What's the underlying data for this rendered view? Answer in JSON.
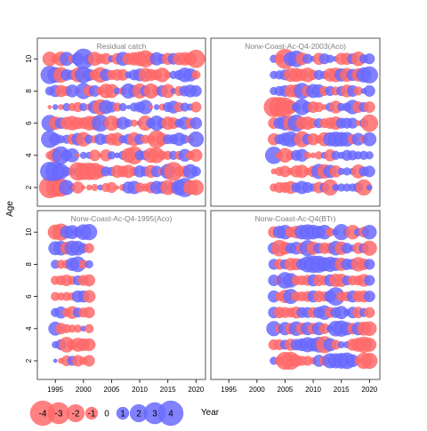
{
  "chart_data": {
    "type": "scatter",
    "kind": "bubble-residual-grid",
    "xlabel": "Year",
    "ylabel": "Age",
    "xlim": [
      1992,
      2021
    ],
    "ylim": [
      1.0,
      11.3
    ],
    "x_ticks": [
      1995,
      2000,
      2005,
      2010,
      2015,
      2020
    ],
    "y_ticks": [
      2,
      4,
      6,
      8,
      10
    ],
    "ages": [
      2,
      3,
      4,
      5,
      6,
      7,
      8,
      9,
      10
    ],
    "colors": {
      "positive": "#6b6bff",
      "negative": "#ff6b6b"
    },
    "legend": {
      "placement": "bottom-left",
      "values": [
        -4,
        -3,
        -2,
        -1,
        0,
        1,
        2,
        3,
        4
      ],
      "labels": [
        "-4",
        "-3",
        "-2",
        "-1",
        "0",
        "1",
        "2",
        "3",
        "4"
      ]
    },
    "panels": [
      {
        "title": "Residual catch",
        "years": [
          1994,
          2020
        ]
      },
      {
        "title": "Norw-Coast-Ac-Q4-2003(Aco)",
        "years": [
          2003,
          2020
        ]
      },
      {
        "title": "Norw-Coast-Ac-Q4-1995(Aco)",
        "years": [
          1995,
          2001
        ]
      },
      {
        "title": "Norw-Coast-Ac-Q4(BTr)",
        "years": [
          2003,
          2020
        ]
      }
    ],
    "residuals": [
      [
        [
          -2.9,
          -2.2,
          -2.1,
          1.4,
          0.3,
          -0.9,
          -0.1,
          -0.2,
          -0.3,
          0.2,
          -0.5,
          -0.7,
          -0.1,
          -0.3,
          0.9,
          1.1,
          -0.6,
          -0.4,
          -0.8,
          1.1,
          0.9,
          -1.4,
          -0.8,
          1.5,
          2.3,
          -1.3,
          -1.5
        ],
        [
          2.3,
          2.3,
          1.5,
          0.5,
          0.3,
          -2.1,
          -1.8,
          -1.9,
          -1.8,
          -1.0,
          0.6,
          0.5,
          -1.0,
          -0.8,
          -1.1,
          -0.5,
          0.9,
          0.6,
          -1.0,
          0.8,
          -0.4,
          1.4,
          -2.2,
          -0.6,
          -0.8,
          1.3,
          0.6
        ],
        [
          -0.4,
          -1.2,
          2.0,
          0.7,
          1.2,
          -0.1,
          0.3,
          0.3,
          -0.8,
          -0.1,
          -0.9,
          0.4,
          0.2,
          0.5,
          -1.3,
          -2.0,
          0.6,
          0.6,
          -1.4,
          -1.5,
          -0.5,
          -0.5,
          0.5,
          -0.5,
          1.0,
          -0.5,
          -1.0
        ],
        [
          1.9,
          0.9,
          0.4,
          0.5,
          -0.7,
          1.0,
          -1.3,
          0.5,
          -0.4,
          0.8,
          0.5,
          -0.9,
          -1.1,
          0.4,
          0.7,
          -1.2,
          0.7,
          -0.5,
          -0.5,
          -2.0,
          -0.9,
          0.6,
          0.6,
          1.1,
          0.5,
          -0.4,
          1.5
        ],
        [
          1.7,
          -1.1,
          0.8,
          -1.0,
          -1.3,
          -0.9,
          -0.8,
          -1.3,
          -1.2,
          1.8,
          0.3,
          -1.4,
          -0.6,
          1.0,
          0.4,
          -0.3,
          0.2,
          -1.4,
          0.6,
          1.4,
          0.6,
          -1.1,
          -0.8,
          0.5,
          1.0,
          -0.7,
          0.9
        ],
        [
          -0.1,
          0.2,
          -0.2,
          0.4,
          -0.4,
          -0.6,
          0.4,
          -0.3,
          1.1,
          -1.5,
          1.2,
          0.7,
          -0.5,
          0.4,
          0.1,
          0.5,
          0.7,
          1.3,
          -0.1,
          0.2,
          -0.3,
          0.6,
          1.0,
          -0.6,
          0.5,
          0.3,
          -0.7
        ],
        [
          0.5,
          0.9,
          -0.9,
          -0.6,
          1.0,
          -0.2,
          1.6,
          -0.8,
          0.8,
          -0.4,
          -1.3,
          -1.2,
          0.3,
          -0.4,
          1.4,
          0.8,
          -1.4,
          0.7,
          -1.4,
          -0.5,
          0.8,
          -1.2,
          0.2,
          -0.6,
          0.7,
          1.0,
          0.8
        ],
        [
          2.1,
          1.5,
          -1.5,
          0.8,
          0.6,
          -1.3,
          1.7,
          0.9,
          -0.7,
          -1.5,
          0.9,
          -0.6,
          -0.8,
          -0.8,
          0.3,
          0.7,
          1.0,
          -1.2,
          -0.9,
          -0.7,
          -1.3,
          -0.3,
          0.4,
          0.6,
          1.3,
          1.1,
          -0.5
        ],
        [
          -1.3,
          -0.4,
          -1.3,
          1.2,
          -0.4,
          1.0,
          2.6,
          0.6,
          -1.2,
          -0.6,
          -0.8,
          0.3,
          -0.8,
          1.2,
          -0.9,
          -1.1,
          -1.3,
          -1.8,
          -0.8,
          1.1,
          0.6,
          -0.9,
          0.8,
          -1.0,
          -1.1,
          -1.0,
          -2.1
        ]
      ],
      [
        [
          -0.4,
          -0.7,
          -0.7,
          -1.0,
          0.6,
          1.1,
          0.7,
          0.4,
          -0.8,
          0.6,
          -1.6,
          0.3,
          0.4,
          0.4,
          0.4,
          0.6,
          -1.6,
          0.2
        ],
        [
          -0.2,
          -0.5,
          -0.8,
          -0.3,
          -0.9,
          -1.1,
          -0.3,
          -0.8,
          1.4,
          -1.3,
          1.1,
          -0.9,
          0.3,
          0.4,
          0.3,
          -1.2,
          0.6,
          0.8
        ],
        [
          1.9,
          -0.3,
          -1.3,
          -0.5,
          0.7,
          1.0,
          -0.3,
          -0.2,
          -0.4,
          0.3,
          -0.9,
          0.5,
          0.3,
          0.7,
          0.6,
          0.4,
          0.5,
          0.4
        ],
        [
          -0.9,
          0.6,
          1.1,
          1.5,
          0.7,
          -1.6,
          0.7,
          -0.9,
          -0.4,
          -1.2,
          1.2,
          1.4,
          1.3,
          1.3,
          -0.6,
          1.0,
          -0.4,
          1.2
        ],
        [
          -0.8,
          0.8,
          1.3,
          -1.4,
          1.8,
          -1.0,
          -1.1,
          -0.6,
          0.6,
          -0.6,
          -0.8,
          -1.1,
          0.7,
          0.7,
          0.7,
          -0.2,
          0.5,
          -1.9
        ],
        [
          -2.5,
          -2.5,
          -2.3,
          -1.1,
          0.5,
          1.6,
          0.7,
          -0.8,
          -0.6,
          -0.2,
          0.5,
          -1.0,
          0.4,
          0.5,
          1.3,
          -0.8,
          0.6,
          -0.8
        ],
        [
          0.4,
          0.6,
          0.8,
          -1.0,
          -1.1,
          1.6,
          -0.8,
          1.2,
          1.1,
          -0.6,
          0.6,
          -0.5,
          0.6,
          -1.0,
          0.8,
          -0.5,
          0.2,
          0.8
        ],
        [
          0.4,
          0.5,
          0.7,
          -1.2,
          -1.2,
          -0.9,
          -1.3,
          -0.6,
          0.6,
          0.4,
          -1.1,
          -1.3,
          1.1,
          -1.2,
          0.9,
          -1.1,
          1.4,
          1.8
        ],
        [
          0.4,
          -0.6,
          -2.5,
          1.2,
          1.7,
          -1.0,
          0.6,
          0.2,
          -0.9,
          0.7,
          0.4,
          0.2,
          -0.9,
          -0.9,
          0.7,
          -1.3,
          0.5,
          0.7
        ]
      ],
      [
        [
          0.1,
          -0.2,
          -0.7,
          0.6,
          -0.8,
          -0.4,
          -0.8
        ],
        [
          0.3,
          0.7,
          -1.5,
          -0.6,
          -1.2,
          -1.0,
          -1.0
        ],
        [
          1.2,
          -0.8,
          -0.5,
          -0.4,
          -0.4,
          0.2,
          -0.5
        ],
        [
          0.5,
          0.9,
          -0.5,
          -1.0,
          0.6,
          -0.6,
          -0.8
        ],
        [
          -0.5,
          -0.4,
          -0.5,
          -0.4,
          0.9,
          0.9,
          -1.0
        ],
        [
          -0.5,
          -0.6,
          -0.8,
          -0.5,
          0.6,
          -0.7,
          -0.9
        ],
        [
          0.5,
          -0.5,
          -0.5,
          1.1,
          1.5,
          -0.5,
          0.4
        ],
        [
          1.2,
          1.3,
          -1.0,
          1.4,
          1.3,
          0.6,
          -0.6
        ],
        [
          -1.4,
          -1.8,
          1.0,
          1.2,
          0.6,
          1.5,
          1.6
        ]
      ],
      [
        [
          0.4,
          -0.5,
          -2.0,
          -2.0,
          -0.9,
          -0.6,
          -0.6,
          -0.3,
          0.9,
          -0.6,
          1.4,
          1.4,
          1.5,
          1.7,
          1.0,
          -0.3,
          -1.6,
          -1.6
        ],
        [
          -0.7,
          -0.7,
          0.6,
          -0.9,
          0.8,
          1.0,
          1.4,
          1.1,
          1.5,
          -1.8,
          1.1,
          -0.6,
          0.3,
          0.3,
          -0.9,
          -1.2,
          -1.6,
          -1.2
        ],
        [
          1.4,
          -0.5,
          1.1,
          -0.8,
          1.3,
          -0.9,
          1.1,
          -0.8,
          1.1,
          -0.7,
          0.3,
          1.5,
          1.6,
          1.1,
          -0.8,
          1.1,
          -1.2,
          -1.3
        ],
        [
          0.8,
          -0.8,
          -0.7,
          -0.6,
          -0.9,
          0.7,
          0.7,
          -0.7,
          0.8,
          1.3,
          -0.7,
          0.7,
          1.1,
          0.3,
          0.8,
          -0.8,
          0.5,
          -0.7
        ],
        [
          0.9,
          -0.5,
          -1.1,
          1.4,
          -0.6,
          -0.6,
          -0.7,
          0.9,
          -0.8,
          -0.6,
          0.9,
          2.1,
          -0.6,
          -0.6,
          0.9,
          -0.8,
          -0.9,
          0.8
        ],
        [
          0.8,
          -0.5,
          1.7,
          1.3,
          -0.6,
          -0.6,
          -0.7,
          0.9,
          -0.8,
          -0.6,
          0.9,
          -1.1,
          -1.1,
          0.6,
          -0.6,
          -0.6,
          -1.0,
          0.7
        ],
        [
          0.7,
          -0.7,
          0.6,
          -1.0,
          -0.9,
          0.8,
          1.6,
          1.9,
          1.8,
          1.2,
          1.4,
          1.1,
          -1.1,
          0.8,
          0.7,
          -1.3,
          -0.8,
          0.7
        ],
        [
          0.9,
          -1.7,
          -1.0,
          0.7,
          1.0,
          -0.8,
          1.6,
          -1.1,
          0.7,
          -0.8,
          -0.7,
          1.3,
          -1.1,
          0.7,
          0.3,
          -0.8,
          0.6,
          -1.4
        ],
        [
          -0.8,
          1.0,
          1.3,
          -0.7,
          -1.0,
          1.3,
          1.5,
          1.3,
          1.0,
          1.3,
          -0.5,
          0.3,
          1.6,
          0.3,
          -1.3,
          0.4,
          -0.7,
          1.3
        ]
      ]
    ]
  }
}
